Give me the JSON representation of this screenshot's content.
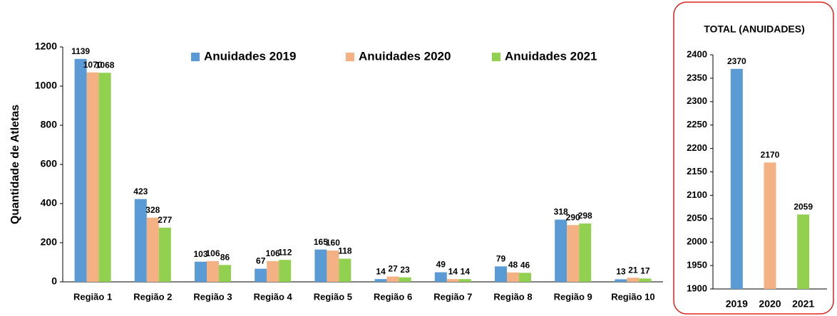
{
  "chart_data": [
    {
      "type": "bar",
      "y_label": "Quantidade de Atletas",
      "categories": [
        "Região 1",
        "Região 2",
        "Região 3",
        "Região 4",
        "Região 5",
        "Região 6",
        "Região 7",
        "Região 8",
        "Região 9",
        "Região 10"
      ],
      "series": [
        {
          "name": "Anuidades 2019",
          "color": "#5b9bd5",
          "values": [
            1139,
            423,
            103,
            67,
            165,
            14,
            49,
            79,
            318,
            13
          ]
        },
        {
          "name": "Anuidades 2020",
          "color": "#f4b183",
          "values": [
            1070,
            328,
            106,
            106,
            160,
            27,
            14,
            48,
            290,
            21
          ]
        },
        {
          "name": "Anuidades 2021",
          "color": "#92d050",
          "values": [
            1068,
            277,
            86,
            112,
            118,
            23,
            14,
            46,
            298,
            17
          ]
        }
      ],
      "ylim": [
        0,
        1200
      ],
      "yticks": [
        0,
        200,
        400,
        600,
        800,
        1000,
        1200
      ],
      "legend": "top"
    },
    {
      "type": "bar",
      "title": "TOTAL (ANUIDADES)",
      "categories": [
        "2019",
        "2020",
        "2021"
      ],
      "values": [
        2370,
        2170,
        2059
      ],
      "colors": [
        "#5b9bd5",
        "#f4b183",
        "#92d050"
      ],
      "ylim": [
        1900,
        2400
      ],
      "yticks": [
        1900,
        1950,
        2000,
        2050,
        2100,
        2150,
        2200,
        2250,
        2300,
        2350,
        2400
      ]
    }
  ]
}
